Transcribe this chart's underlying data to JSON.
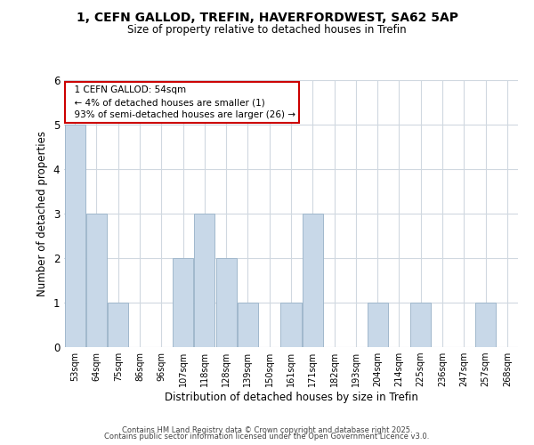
{
  "title_line1": "1, CEFN GALLOD, TREFIN, HAVERFORDWEST, SA62 5AP",
  "title_line2": "Size of property relative to detached houses in Trefin",
  "xlabel": "Distribution of detached houses by size in Trefin",
  "ylabel": "Number of detached properties",
  "bin_labels": [
    "53sqm",
    "64sqm",
    "75sqm",
    "86sqm",
    "96sqm",
    "107sqm",
    "118sqm",
    "128sqm",
    "139sqm",
    "150sqm",
    "161sqm",
    "171sqm",
    "182sqm",
    "193sqm",
    "204sqm",
    "214sqm",
    "225sqm",
    "236sqm",
    "247sqm",
    "257sqm",
    "268sqm"
  ],
  "bar_heights": [
    5,
    3,
    1,
    0,
    0,
    2,
    3,
    2,
    1,
    0,
    1,
    3,
    0,
    0,
    1,
    0,
    1,
    0,
    0,
    1,
    0
  ],
  "bar_color": "#c8d8e8",
  "bar_edge_color": "#a0b8cc",
  "annotation_title": "1 CEFN GALLOD: 54sqm",
  "annotation_line2": "← 4% of detached houses are smaller (1)",
  "annotation_line3": "93% of semi-detached houses are larger (26) →",
  "annotation_box_color": "#ffffff",
  "annotation_box_edge_color": "#cc0000",
  "ylim": [
    0,
    6
  ],
  "yticks": [
    0,
    1,
    2,
    3,
    4,
    5,
    6
  ],
  "footer_line1": "Contains HM Land Registry data © Crown copyright and database right 2025.",
  "footer_line2": "Contains public sector information licensed under the Open Government Licence v3.0.",
  "background_color": "#ffffff",
  "grid_color": "#d0d8e0"
}
